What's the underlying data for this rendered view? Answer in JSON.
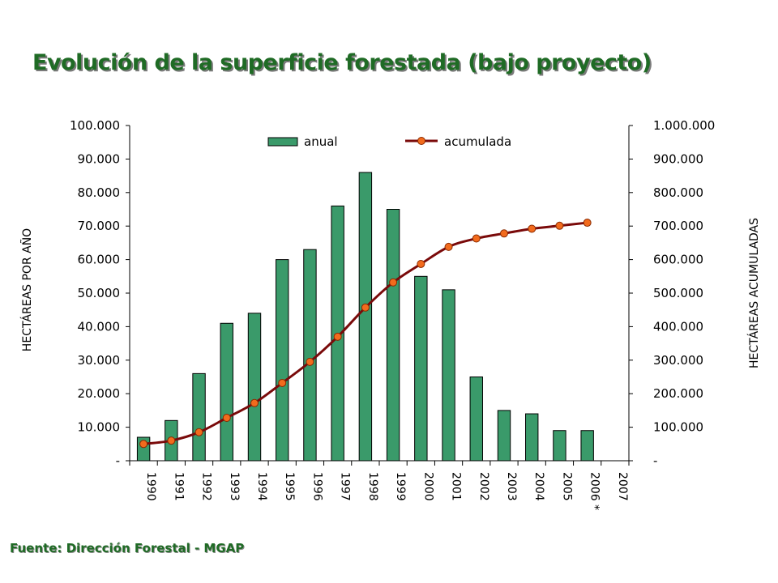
{
  "page": {
    "title": "Evolución de la superficie forestada (bajo proyecto)",
    "source": "Fuente: Dirección Forestal - MGAP"
  },
  "colors": {
    "title": "#1f6b25",
    "bar_fill": "#3a9a6a",
    "bar_stroke": "#000000",
    "line": "#7a0a0a",
    "marker": "#f26b1d"
  },
  "chart_data": {
    "type": "bar",
    "categories": [
      "1990",
      "1991",
      "1992",
      "1993",
      "1994",
      "1995",
      "1996",
      "1997",
      "1998",
      "1999",
      "2000",
      "2001",
      "2002",
      "2003",
      "2004",
      "2005",
      "2006 *",
      "2007"
    ],
    "series": [
      {
        "name": "anual",
        "type": "bar",
        "axis": "left",
        "values": [
          7000,
          12000,
          26000,
          41000,
          44000,
          60000,
          63000,
          76000,
          86000,
          75000,
          55000,
          51000,
          25000,
          15000,
          14000,
          9000,
          9000,
          null
        ]
      },
      {
        "name": "acumulada",
        "type": "line",
        "axis": "right",
        "values": [
          50000,
          60000,
          85000,
          128000,
          172000,
          232000,
          295000,
          370000,
          457000,
          532000,
          587000,
          638000,
          663000,
          678000,
          692000,
          701000,
          710000,
          null
        ]
      }
    ],
    "y_left": {
      "label": "HECTÁREAS POR AÑO",
      "ylim": [
        0,
        100000
      ],
      "ticks": [
        "-",
        "10.000",
        "20.000",
        "30.000",
        "40.000",
        "50.000",
        "60.000",
        "70.000",
        "80.000",
        "90.000",
        "100.000"
      ]
    },
    "y_right": {
      "label": "HECTÁREAS ACUMULADAS",
      "ylim": [
        0,
        1000000
      ],
      "ticks": [
        "-",
        "100.000",
        "200.000",
        "300.000",
        "400.000",
        "500.000",
        "600.000",
        "700.000",
        "800.000",
        "900.000",
        "1.000.000"
      ]
    },
    "legend": {
      "position": "top"
    },
    "grid": false
  }
}
